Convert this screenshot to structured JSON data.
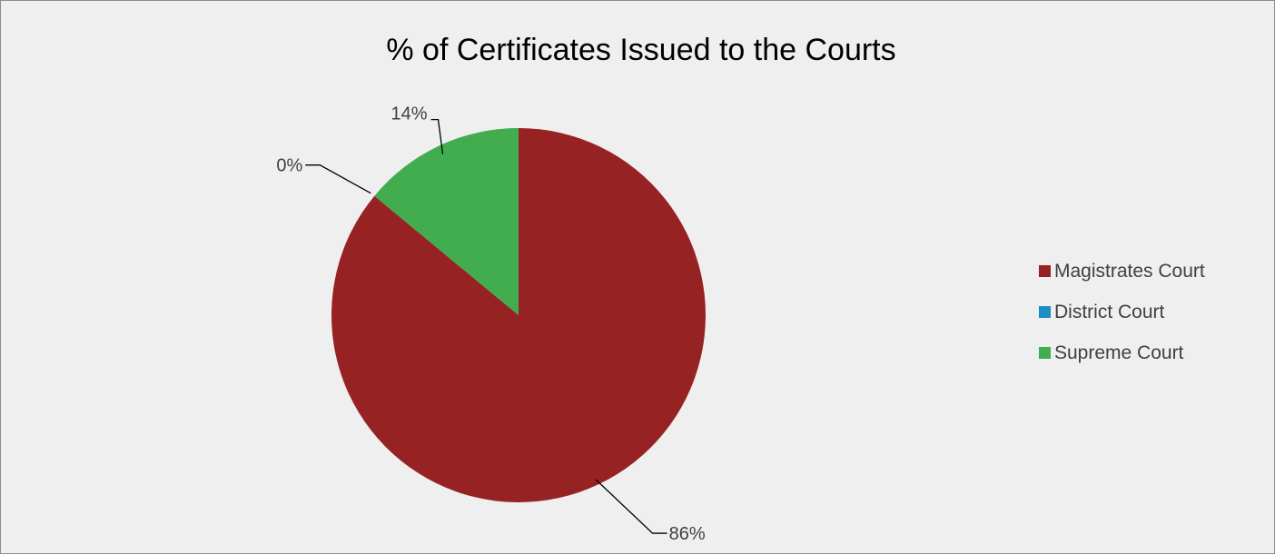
{
  "chart_data": {
    "type": "pie",
    "title": "% of Certificates Issued to the Courts",
    "categories": [
      "Magistrates Court",
      "District Court",
      "Supreme Court"
    ],
    "values": [
      86,
      0,
      14
    ],
    "labels": [
      "86%",
      "0%",
      "14%"
    ],
    "colors": [
      "#972224",
      "#1b8fc3",
      "#41ad4e"
    ],
    "legend_position": "right"
  }
}
